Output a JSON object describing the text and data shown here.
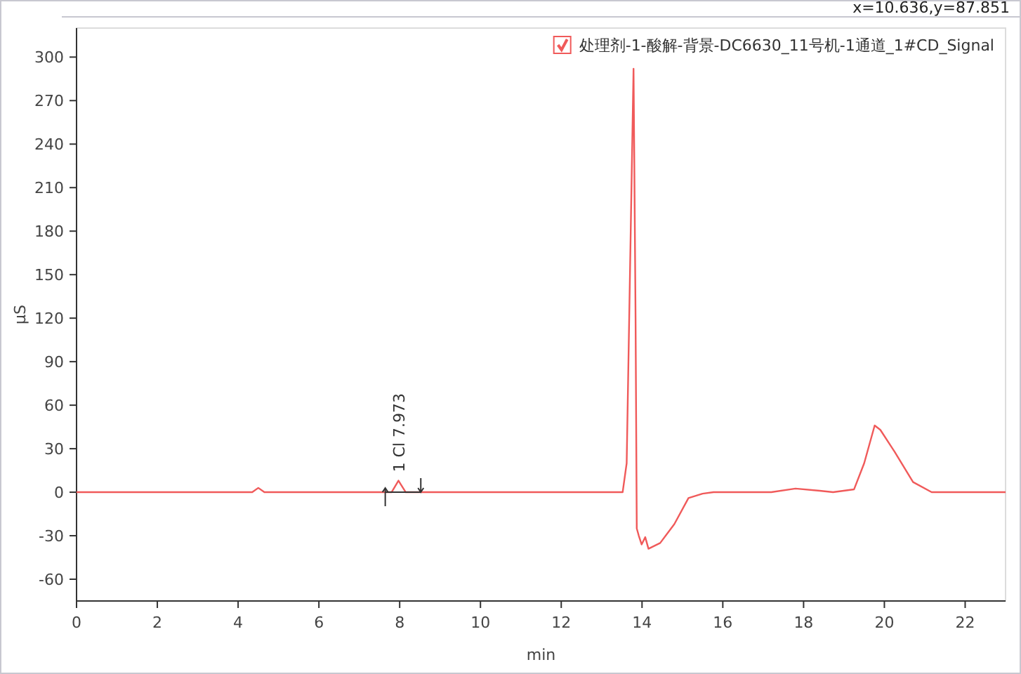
{
  "chart_data": {
    "type": "line",
    "xlabel": "min",
    "ylabel": "µS",
    "annotations": [
      "x=10.636,y=87.851",
      {
        "text": "1 Cl 7.973",
        "x": 7.973,
        "y": 8
      }
    ],
    "xlim": [
      0,
      23
    ],
    "xticks": [
      0,
      2,
      4,
      6,
      8,
      10,
      12,
      14,
      16,
      18,
      20,
      22
    ],
    "ylim": [
      -75,
      320
    ],
    "yticks": [
      -60,
      -30,
      0,
      30,
      60,
      90,
      120,
      150,
      180,
      210,
      240,
      270,
      300
    ],
    "legend": "top right",
    "series": [
      {
        "name": "处理剂-1-酸解-背景-DC6630_11号机-1通道_1#CD_Signal",
        "color": "#f05a5a",
        "x": [
          0,
          4.35,
          4.5,
          4.65,
          7.8,
          7.97,
          8.15,
          13.52,
          13.62,
          13.72,
          13.79,
          13.84,
          13.87,
          13.92,
          13.99,
          14.08,
          14.16,
          14.45,
          14.8,
          15.15,
          15.5,
          15.77,
          17.2,
          17.8,
          18.4,
          18.73,
          19.25,
          19.5,
          19.76,
          19.9,
          20.25,
          20.71,
          21.17,
          23
        ],
        "values": [
          0,
          0,
          3,
          0,
          0,
          8,
          0,
          0,
          20,
          180,
          292,
          120,
          -25,
          -30,
          -36,
          -31,
          -39,
          -35,
          -22,
          -4,
          -1,
          0,
          0,
          2.5,
          1,
          0,
          2,
          20,
          46,
          43,
          28,
          7,
          0,
          0
        ]
      }
    ]
  }
}
